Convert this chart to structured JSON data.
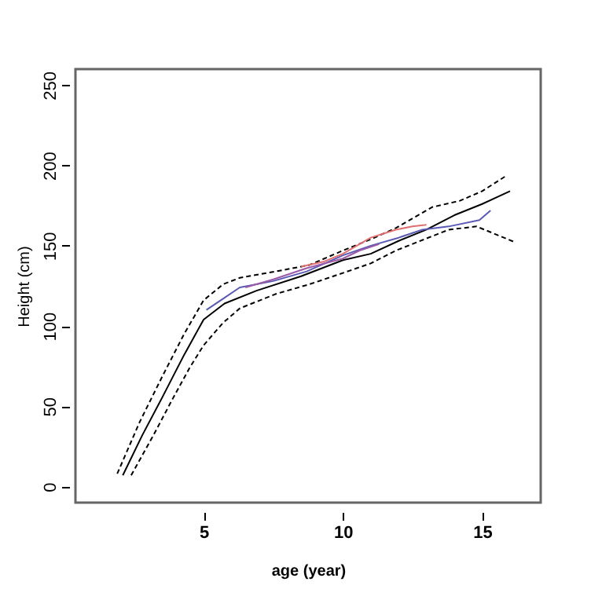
{
  "chart_data": {
    "type": "line",
    "xlabel": "age (year)",
    "ylabel": "Height (cm)",
    "xlim": [
      0.4,
      17.1
    ],
    "ylim": [
      -10,
      260
    ],
    "xticks": [
      5,
      10,
      15
    ],
    "yticks": [
      0,
      50,
      100,
      150,
      200,
      250
    ],
    "grid": false,
    "marker": "none",
    "series": [
      {
        "color": "#000000",
        "line_style": "dashed",
        "x": [
          1.9,
          2.7,
          3.5,
          4.3,
          5,
          5.7,
          6.3,
          7.6,
          8.8,
          10,
          11,
          11.9,
          13.2,
          14.2,
          15,
          15.9
        ],
        "values": [
          8,
          40,
          68,
          95,
          116,
          126,
          130,
          134,
          138,
          147,
          154,
          161,
          174,
          178,
          184,
          194
        ]
      },
      {
        "color": "#000000",
        "line_style": "dashed",
        "x": [
          2.4,
          3.2,
          3.9,
          4.5,
          5,
          5.7,
          6.3,
          7.6,
          8.8,
          10,
          11,
          11.9,
          13.8,
          14.8,
          15.5,
          16.2
        ],
        "values": [
          7,
          32,
          55,
          74,
          88,
          102,
          111,
          120,
          126,
          133,
          139,
          147,
          160,
          162,
          157,
          152
        ]
      },
      {
        "color": "#000000",
        "line_style": "solid",
        "x": [
          2.1,
          2.8,
          3.5,
          4.3,
          5,
          5.75,
          6.9,
          8.5,
          10,
          11,
          12,
          13,
          14,
          15,
          16
        ],
        "values": [
          7,
          32,
          55,
          82,
          104,
          114,
          122,
          131,
          141,
          145,
          153,
          160,
          169,
          176,
          184
        ]
      },
      {
        "color": "#5a5ab4",
        "line_style": "solid",
        "x": [
          5.1,
          5.7,
          6.3,
          7.5,
          8.7,
          10,
          11,
          12,
          12.85,
          13.8,
          14.9,
          15.3
        ],
        "values": [
          110,
          117,
          124,
          128,
          134,
          144,
          150,
          155,
          160,
          162,
          166,
          172
        ]
      },
      {
        "color": "#9a5aa8",
        "line_style": "solid",
        "x": [
          6.5,
          7.5,
          8.7,
          10,
          10.6,
          11.3
        ],
        "values": [
          124,
          129,
          136,
          142,
          147,
          151
        ]
      },
      {
        "color": "#e07070",
        "line_style": "solid",
        "x": [
          8.5,
          9.3,
          10,
          10.5,
          11,
          11.9,
          12.5,
          13
        ],
        "values": [
          137,
          140,
          145,
          150,
          155,
          160,
          162,
          163
        ]
      }
    ]
  }
}
